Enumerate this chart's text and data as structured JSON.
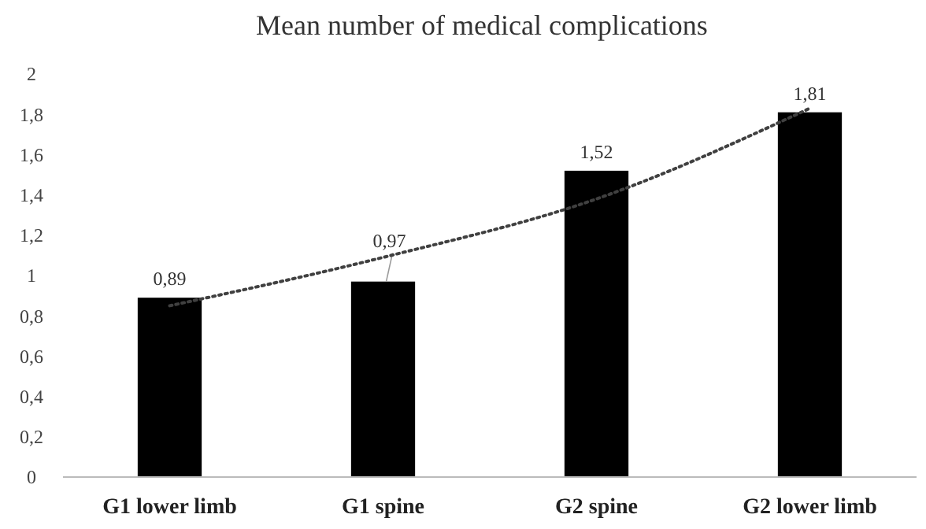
{
  "chart_data": {
    "type": "bar",
    "title": "Mean number of medical complications",
    "categories": [
      "G1 lower limb",
      "G1 spine",
      "G2 spine",
      "G2 lower limb"
    ],
    "series": [
      {
        "color": "#000000",
        "values": [
          0.89,
          0.97,
          1.52,
          1.81
        ],
        "value_labels": [
          "0,89",
          "0,97",
          "1,52",
          "1,81"
        ]
      },
      {
        "type": "line",
        "color": "#404040",
        "line_style": "dotted",
        "marker": "none",
        "x": [
          "G1 lower limb",
          "G1 spine",
          "G2 spine",
          "G2 lower limb"
        ],
        "values": [
          0.85,
          1.09,
          1.38,
          1.83
        ]
      }
    ],
    "ylim": [
      0,
      2
    ],
    "yticks": [
      0,
      {
        "value": 0.2,
        "label": "0,2"
      },
      {
        "value": 0.4,
        "label": "0,4"
      },
      {
        "value": 0.6,
        "label": "0,6"
      },
      {
        "value": 0.8,
        "label": "0,8"
      },
      1,
      {
        "value": 1.2,
        "label": "1,2"
      },
      {
        "value": 1.4,
        "label": "1,4"
      },
      {
        "value": 1.6,
        "label": "1,6"
      },
      {
        "value": 1.8,
        "label": "1,8"
      },
      2
    ],
    "grid": false
  }
}
